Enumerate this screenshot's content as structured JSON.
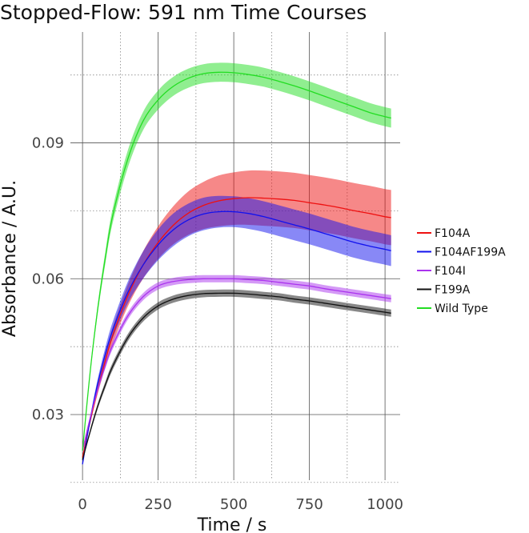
{
  "chart_data": {
    "type": "line",
    "title": "Stopped-Flow: 591 nm Time Courses",
    "xlabel": "Time / s",
    "ylabel": "Absorbance / A.U.",
    "xlim": [
      -40,
      1050
    ],
    "ylim": [
      0.0155,
      0.1145
    ],
    "x_major_ticks": [
      0,
      250,
      500,
      750,
      1000
    ],
    "x_minor_ticks": [
      125,
      375,
      625,
      875
    ],
    "y_major_ticks": [
      0.03,
      0.06,
      0.09
    ],
    "y_minor_ticks": [
      0.015,
      0.045,
      0.075,
      0.105
    ],
    "x_tick_labels": [
      "0",
      "250",
      "500",
      "750",
      "1000"
    ],
    "y_tick_labels": [
      "0.03",
      "0.06",
      "0.09"
    ],
    "grid": true,
    "legend_position": "right",
    "x": [
      0,
      25,
      50,
      75,
      100,
      150,
      200,
      250,
      300,
      350,
      400,
      450,
      500,
      550,
      600,
      650,
      700,
      750,
      800,
      850,
      900,
      950,
      1000,
      1020
    ],
    "series": [
      {
        "name": "F104A",
        "color": "#ee1111",
        "values": [
          0.0205,
          0.0285,
          0.0355,
          0.0418,
          0.0475,
          0.0563,
          0.063,
          0.068,
          0.0718,
          0.0745,
          0.0762,
          0.0772,
          0.0777,
          0.0779,
          0.0778,
          0.0776,
          0.0773,
          0.0768,
          0.0763,
          0.0757,
          0.075,
          0.0744,
          0.0737,
          0.0735
        ],
        "band": [
          0.0003,
          0.0006,
          0.001,
          0.0014,
          0.0018,
          0.0024,
          0.003,
          0.0036,
          0.0042,
          0.0048,
          0.0052,
          0.0056,
          0.0058,
          0.006,
          0.0061,
          0.0061,
          0.0061,
          0.0061,
          0.0061,
          0.0061,
          0.0061,
          0.0061,
          0.0061,
          0.0061
        ]
      },
      {
        "name": "F104AF199A",
        "color": "#1111ee",
        "values": [
          0.019,
          0.0288,
          0.0368,
          0.0433,
          0.0487,
          0.057,
          0.063,
          0.0675,
          0.0708,
          0.073,
          0.0743,
          0.0748,
          0.0748,
          0.0744,
          0.0737,
          0.0728,
          0.0719,
          0.071,
          0.07,
          0.069,
          0.068,
          0.0672,
          0.0665,
          0.0662
        ],
        "band": [
          0.0003,
          0.0006,
          0.001,
          0.0014,
          0.0018,
          0.0024,
          0.003,
          0.0034,
          0.0036,
          0.0036,
          0.0036,
          0.0035,
          0.0034,
          0.0034,
          0.0034,
          0.0034,
          0.0034,
          0.0034,
          0.0034,
          0.0034,
          0.0034,
          0.0034,
          0.0034,
          0.0034
        ]
      },
      {
        "name": "F104I",
        "color": "#aa33ee",
        "values": [
          0.022,
          0.0292,
          0.0355,
          0.0408,
          0.0453,
          0.0518,
          0.056,
          0.0584,
          0.0594,
          0.0598,
          0.06,
          0.06,
          0.06,
          0.0598,
          0.0596,
          0.0592,
          0.0588,
          0.0584,
          0.0578,
          0.0573,
          0.0568,
          0.0563,
          0.0558,
          0.0556
        ],
        "band": [
          0.0003,
          0.0005,
          0.0006,
          0.0007,
          0.0008,
          0.0008,
          0.0008,
          0.0008,
          0.0008,
          0.0008,
          0.0008,
          0.0008,
          0.0008,
          0.0008,
          0.0008,
          0.0008,
          0.0008,
          0.0008,
          0.0008,
          0.0008,
          0.0008,
          0.0008,
          0.0008,
          0.0008
        ]
      },
      {
        "name": "F199A",
        "color": "#111111",
        "values": [
          0.02,
          0.0262,
          0.0318,
          0.0365,
          0.0407,
          0.047,
          0.0513,
          0.054,
          0.0555,
          0.0563,
          0.0567,
          0.0568,
          0.0568,
          0.0566,
          0.0563,
          0.056,
          0.0555,
          0.0551,
          0.0546,
          0.0541,
          0.0536,
          0.0531,
          0.0526,
          0.0524
        ],
        "band": [
          0.0003,
          0.0005,
          0.0006,
          0.0007,
          0.0008,
          0.0008,
          0.0008,
          0.0008,
          0.0008,
          0.0008,
          0.0008,
          0.0008,
          0.0008,
          0.0008,
          0.0008,
          0.0008,
          0.0008,
          0.0008,
          0.0008,
          0.0008,
          0.0008,
          0.0008,
          0.0008,
          0.0008
        ]
      },
      {
        "name": "Wild Type",
        "color": "#22dd22",
        "values": [
          0.022,
          0.0393,
          0.0532,
          0.0645,
          0.074,
          0.0865,
          0.0948,
          0.0995,
          0.1025,
          0.1043,
          0.1053,
          0.1056,
          0.1055,
          0.1051,
          0.1045,
          0.1036,
          0.1026,
          0.1015,
          0.1003,
          0.0991,
          0.0979,
          0.0967,
          0.0958,
          0.0955
        ],
        "band": [
          0.0003,
          0.0006,
          0.001,
          0.0013,
          0.0016,
          0.0019,
          0.002,
          0.0021,
          0.0021,
          0.0021,
          0.0021,
          0.0021,
          0.0021,
          0.0021,
          0.0021,
          0.0021,
          0.0021,
          0.0021,
          0.0021,
          0.0021,
          0.0021,
          0.0021,
          0.0021,
          0.0021
        ]
      }
    ]
  }
}
